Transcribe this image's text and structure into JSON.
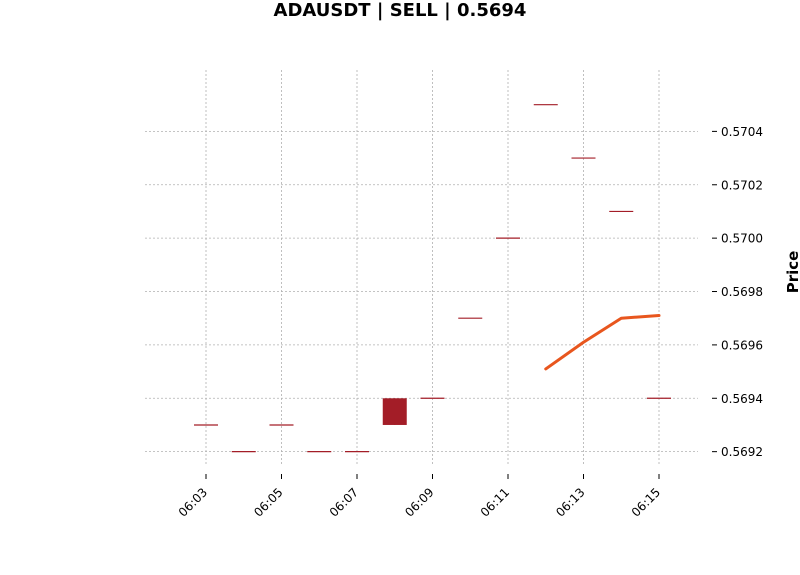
{
  "chart_data": {
    "type": "candlestick",
    "title": "ADAUSDT | SELL | 0.5694",
    "xlabel": "",
    "ylabel": "Price",
    "ylim": [
      0.56915,
      0.57063
    ],
    "grid": true,
    "y_ticks": [
      "0.5692",
      "0.5694",
      "0.5696",
      "0.5698",
      "0.5700",
      "0.5702",
      "0.5704"
    ],
    "x_ticks": [
      "06:03",
      "06:05",
      "06:07",
      "06:09",
      "06:11",
      "06:13",
      "06:15"
    ],
    "candles": [
      {
        "time": "06:03",
        "open": 0.5693,
        "high": 0.5693,
        "low": 0.5693,
        "close": 0.5693
      },
      {
        "time": "06:04",
        "open": 0.5692,
        "high": 0.5692,
        "low": 0.5692,
        "close": 0.5692
      },
      {
        "time": "06:05",
        "open": 0.5693,
        "high": 0.5693,
        "low": 0.5693,
        "close": 0.5693
      },
      {
        "time": "06:06",
        "open": 0.5692,
        "high": 0.5692,
        "low": 0.5692,
        "close": 0.5692
      },
      {
        "time": "06:07",
        "open": 0.5692,
        "high": 0.5692,
        "low": 0.5692,
        "close": 0.5692
      },
      {
        "time": "06:08",
        "open": 0.5694,
        "high": 0.5694,
        "low": 0.5693,
        "close": 0.5693
      },
      {
        "time": "06:09",
        "open": 0.5694,
        "high": 0.5694,
        "low": 0.5694,
        "close": 0.5694
      },
      {
        "time": "06:10",
        "open": 0.5697,
        "high": 0.5697,
        "low": 0.5697,
        "close": 0.5697
      },
      {
        "time": "06:11",
        "open": 0.57,
        "high": 0.57,
        "low": 0.57,
        "close": 0.57
      },
      {
        "time": "06:12",
        "open": 0.5705,
        "high": 0.5705,
        "low": 0.5705,
        "close": 0.5705
      },
      {
        "time": "06:13",
        "open": 0.5703,
        "high": 0.5703,
        "low": 0.5703,
        "close": 0.5703
      },
      {
        "time": "06:14",
        "open": 0.5701,
        "high": 0.5701,
        "low": 0.5701,
        "close": 0.5701
      },
      {
        "time": "06:15",
        "open": 0.5694,
        "high": 0.5694,
        "low": 0.5694,
        "close": 0.5694
      }
    ],
    "line_series": {
      "color": "#e8561e",
      "points": [
        {
          "time": "06:12",
          "value": 0.56951
        },
        {
          "time": "06:13",
          "value": 0.56961
        },
        {
          "time": "06:14",
          "value": 0.5697
        },
        {
          "time": "06:15",
          "value": 0.56971
        }
      ]
    },
    "colors": {
      "candle": "#a31d27",
      "grid": "#b0b0b0"
    }
  }
}
